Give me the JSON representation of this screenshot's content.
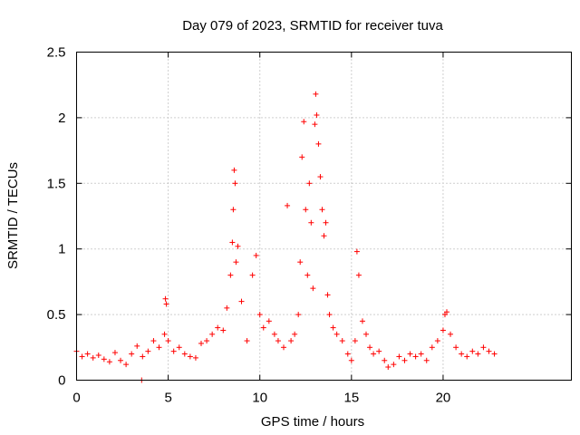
{
  "chart_data": {
    "type": "scatter",
    "title": "Day 079 of 2023, SRMTID for receiver tuva",
    "xlabel": "GPS time / hours",
    "ylabel": "SRMTID / TECUs",
    "xlim": [
      0,
      27
    ],
    "ylim": [
      0,
      2.5
    ],
    "xticks": [
      0,
      5,
      10,
      15,
      20
    ],
    "xtick_labels": [
      "0",
      "5",
      "10",
      "15",
      "20"
    ],
    "yticks": [
      0,
      0.5,
      1,
      1.5,
      2,
      2.5
    ],
    "ytick_labels": [
      "0",
      "0.5",
      "1",
      "1.5",
      "2",
      "2.5"
    ],
    "grid": true,
    "marker": "+",
    "series": [
      {
        "name": "SRMTID",
        "color": "#ff0000",
        "x": [
          0.0,
          0.3,
          0.6,
          0.9,
          1.2,
          1.5,
          1.8,
          2.1,
          2.4,
          2.7,
          3.0,
          3.3,
          3.6,
          3.9,
          4.2,
          4.5,
          4.8,
          4.85,
          4.9,
          5.0,
          5.3,
          5.6,
          5.9,
          6.2,
          6.5,
          6.8,
          7.1,
          7.4,
          7.7,
          8.0,
          8.2,
          8.4,
          8.5,
          8.55,
          8.6,
          8.65,
          8.7,
          8.8,
          9.0,
          9.3,
          9.6,
          9.8,
          10.0,
          10.2,
          10.5,
          10.8,
          11.0,
          11.3,
          11.5,
          11.7,
          11.9,
          12.1,
          12.2,
          12.3,
          12.4,
          12.5,
          12.6,
          12.7,
          12.8,
          12.9,
          13.0,
          13.05,
          13.1,
          13.2,
          13.3,
          13.4,
          13.5,
          13.6,
          13.7,
          13.8,
          14.0,
          14.2,
          14.5,
          14.8,
          15.0,
          15.2,
          15.3,
          15.4,
          15.6,
          15.8,
          16.0,
          16.2,
          16.5,
          16.8,
          17.0,
          17.3,
          17.6,
          17.9,
          18.2,
          18.5,
          18.8,
          19.1,
          19.4,
          19.7,
          20.0,
          20.1,
          20.2,
          20.4,
          20.7,
          21.0,
          21.3,
          21.6,
          21.9,
          22.2,
          22.5,
          22.8,
          3.55
        ],
        "y": [
          0.22,
          0.18,
          0.2,
          0.17,
          0.19,
          0.16,
          0.14,
          0.21,
          0.15,
          0.12,
          0.2,
          0.26,
          0.18,
          0.22,
          0.3,
          0.25,
          0.35,
          0.62,
          0.58,
          0.3,
          0.22,
          0.25,
          0.2,
          0.18,
          0.17,
          0.28,
          0.3,
          0.35,
          0.4,
          0.38,
          0.55,
          0.8,
          1.05,
          1.3,
          1.6,
          1.5,
          0.9,
          1.02,
          0.6,
          0.3,
          0.8,
          0.95,
          0.5,
          0.4,
          0.45,
          0.35,
          0.3,
          0.25,
          1.33,
          0.3,
          0.35,
          0.5,
          0.9,
          1.7,
          1.97,
          1.3,
          0.8,
          1.5,
          1.2,
          0.7,
          1.95,
          2.18,
          2.02,
          1.8,
          1.55,
          1.3,
          1.1,
          1.2,
          0.65,
          0.5,
          0.4,
          0.35,
          0.3,
          0.2,
          0.15,
          0.3,
          0.98,
          0.8,
          0.45,
          0.35,
          0.25,
          0.2,
          0.22,
          0.15,
          0.1,
          0.12,
          0.18,
          0.15,
          0.2,
          0.18,
          0.2,
          0.15,
          0.25,
          0.3,
          0.38,
          0.5,
          0.52,
          0.35,
          0.25,
          0.2,
          0.18,
          0.22,
          0.2,
          0.25,
          0.22,
          0.2,
          0.0
        ]
      }
    ]
  }
}
